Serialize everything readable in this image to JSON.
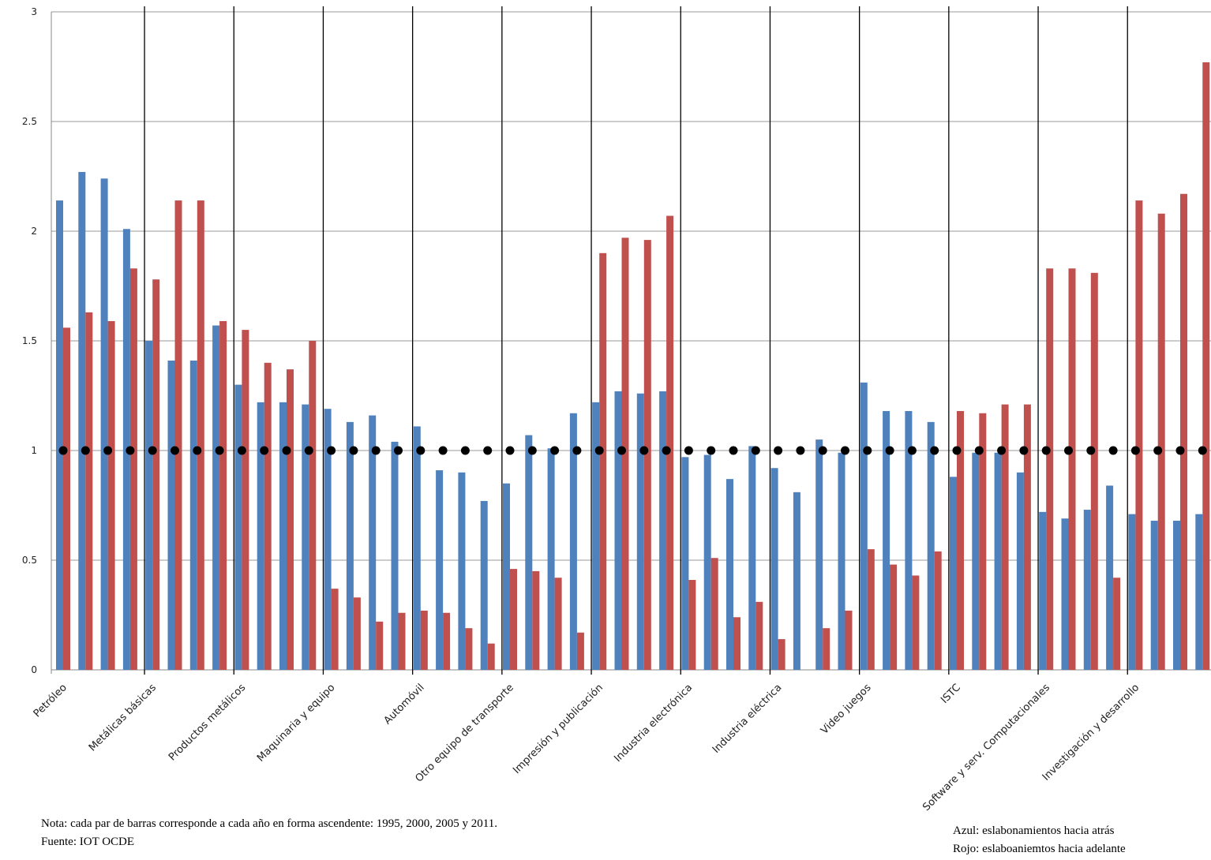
{
  "chart_data": {
    "type": "bar",
    "categories": [
      "Petróleo",
      null,
      null,
      null,
      "Metálicas básicas",
      null,
      null,
      null,
      "Productos metálicos",
      null,
      null,
      null,
      "Maquinaria y equipo",
      null,
      null,
      null,
      "Automóvil",
      null,
      null,
      null,
      "Otro equipo de transporte",
      null,
      null,
      null,
      "Impresión y publicación",
      null,
      null,
      null,
      "Industria electrónica",
      null,
      null,
      null,
      "Industria eléctrica",
      null,
      null,
      null,
      "Video juegos",
      null,
      null,
      null,
      "ISTC",
      null,
      null,
      null,
      "Software y serv. Computacionales",
      null,
      null,
      null,
      "Investigación y desarrollo",
      null,
      null,
      null
    ],
    "series": [
      {
        "color": "#4f81bd",
        "values": [
          2.14,
          2.27,
          2.24,
          2.01,
          1.5,
          1.41,
          1.41,
          1.57,
          1.3,
          1.22,
          1.22,
          1.21,
          1.19,
          1.13,
          1.16,
          1.04,
          1.11,
          0.91,
          0.9,
          0.77,
          0.85,
          1.07,
          1.01,
          1.17,
          1.22,
          1.27,
          1.26,
          1.27,
          0.97,
          0.98,
          0.87,
          1.02,
          0.92,
          0.81,
          1.05,
          0.99,
          1.31,
          1.18,
          1.18,
          1.13,
          0.88,
          0.99,
          0.99,
          0.9,
          0.72,
          0.69,
          0.73,
          0.84,
          0.71,
          0.68,
          0.68,
          0.71
        ]
      },
      {
        "color": "#c0504d",
        "values": [
          1.56,
          1.63,
          1.59,
          1.83,
          1.78,
          2.14,
          2.14,
          1.59,
          1.55,
          1.4,
          1.37,
          1.5,
          0.37,
          0.33,
          0.22,
          0.26,
          0.27,
          0.26,
          0.19,
          0.12,
          0.46,
          0.45,
          0.42,
          0.17,
          1.9,
          1.97,
          1.96,
          2.07,
          0.41,
          0.51,
          0.24,
          0.31,
          0.14,
          0,
          0.19,
          0.27,
          0.55,
          0.48,
          0.43,
          0.54,
          1.18,
          1.17,
          1.21,
          1.21,
          1.83,
          1.83,
          1.81,
          0.42,
          2.14,
          2.08,
          2.17,
          2.77
        ]
      }
    ],
    "reference_line": 1,
    "ylim": [
      0,
      3
    ],
    "yticks": [
      0,
      0.5,
      1,
      1.5,
      2,
      2.5,
      3
    ],
    "grid": true,
    "note": "Nota:  cada par de barras corresponde a cada año en forma  ascendente: 1995, 2000, 2005 y 2011.",
    "source": "Fuente: IOT OCDE",
    "color_notes": [
      "Azul: eslabonamientos hacia atrás",
      "Rojo: eslaboaniemtos hacia adelante"
    ]
  }
}
